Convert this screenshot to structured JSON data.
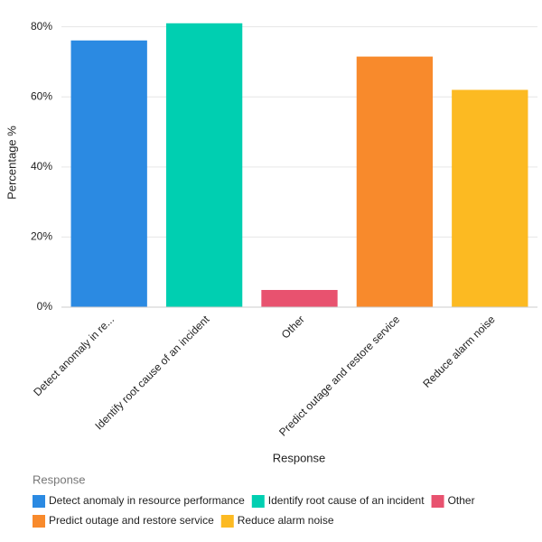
{
  "chart_data": {
    "type": "bar",
    "categories": [
      "Detect anomaly in re...",
      "Identify root cause of an incident",
      "Other",
      "Predict outage and restore service",
      "Reduce alarm noise"
    ],
    "values": [
      76.1,
      81.0,
      4.9,
      71.5,
      62.0
    ],
    "colors": [
      "#2b8ae2",
      "#00cfb1",
      "#e8526f",
      "#f88a2c",
      "#fcba22"
    ],
    "x_label": "Response",
    "y_label": "Percentage %",
    "ylim": [
      0,
      83
    ],
    "yticks": [
      {
        "value": 0,
        "label": "0%"
      },
      {
        "value": 20,
        "label": "20%"
      },
      {
        "value": 40,
        "label": "40%"
      },
      {
        "value": 60,
        "label": "60%"
      },
      {
        "value": 80,
        "label": "80%"
      }
    ],
    "grid": true,
    "legend_title": "Response",
    "legend_labels": [
      "Detect anomaly in resource performance",
      "Identify root cause of an incident",
      "Other",
      "Predict outage and restore service",
      "Reduce alarm noise"
    ]
  }
}
